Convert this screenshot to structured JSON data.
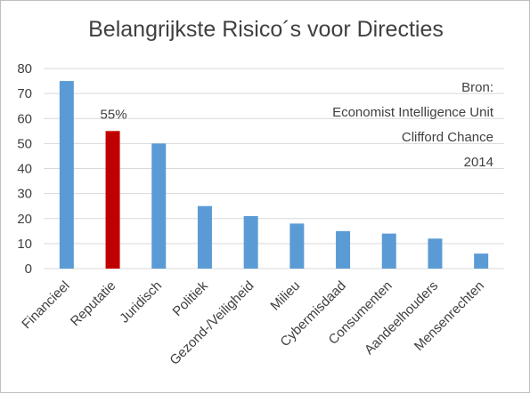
{
  "chart_data": {
    "type": "bar",
    "title": "Belangrijkste Risico´s voor Directies",
    "categories": [
      "Financieel",
      "Reputatie",
      "Juridisch",
      "Politiek",
      "Gezond-/Veiligheid",
      "Milieu",
      "Cybermisdaad",
      "Consumenten",
      "Aandeelhouders",
      "Mensenrechten"
    ],
    "values": [
      75,
      55,
      50,
      25,
      21,
      18,
      15,
      14,
      12,
      6
    ],
    "highlight_index": 1,
    "data_labels": [
      {
        "index": 1,
        "text": "55%"
      }
    ],
    "ylim": [
      0,
      80
    ],
    "yticks": [
      0,
      10,
      20,
      30,
      40,
      50,
      60,
      70,
      80
    ],
    "grid": true,
    "colors": {
      "bar": "#5b9bd5",
      "highlight": "#c00000",
      "grid": "#d9d9d9"
    },
    "annotations": [
      "Bron:",
      "Economist Intelligence Unit",
      "Clifford Chance",
      "2014"
    ]
  }
}
